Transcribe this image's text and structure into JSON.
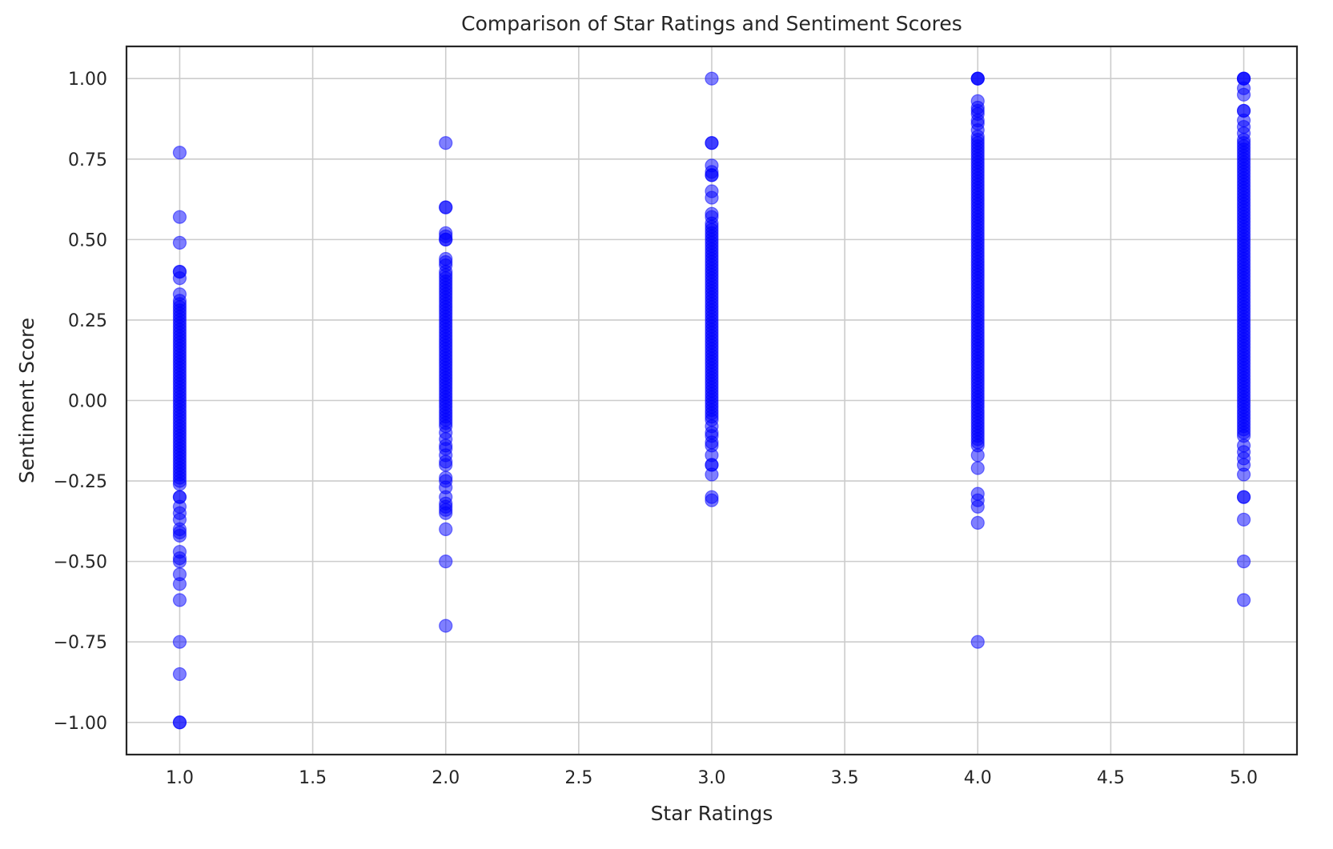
{
  "chart_data": {
    "type": "scatter",
    "title": "Comparison of Star Ratings and Sentiment Scores",
    "xlabel": "Star Ratings",
    "ylabel": "Sentiment Score",
    "xlim": [
      0.8,
      5.2
    ],
    "ylim": [
      -1.1,
      1.1
    ],
    "x_ticks": [
      1.0,
      1.5,
      2.0,
      2.5,
      3.0,
      3.5,
      4.0,
      4.5,
      5.0
    ],
    "x_tick_labels": [
      "1.0",
      "1.5",
      "2.0",
      "2.5",
      "3.0",
      "3.5",
      "4.0",
      "4.5",
      "5.0"
    ],
    "y_ticks": [
      1.0,
      0.75,
      0.5,
      0.25,
      0.0,
      -0.25,
      -0.5,
      -0.75,
      -1.0
    ],
    "y_tick_labels": [
      "1.00",
      "0.75",
      "0.50",
      "0.25",
      "0.00",
      "−0.25",
      "−0.50",
      "−0.75",
      "−1.00"
    ],
    "grid": true,
    "marker_color": "#0000ff",
    "marker_alpha": 0.5,
    "series": [
      {
        "x": 1,
        "y": [
          0.77,
          0.57,
          0.49,
          0.4,
          0.4,
          0.38,
          0.33,
          0.31,
          0.3,
          0.29,
          0.28,
          0.27,
          0.26,
          0.25,
          0.24,
          0.23,
          0.22,
          0.21,
          0.2,
          0.19,
          0.18,
          0.17,
          0.16,
          0.15,
          0.14,
          0.13,
          0.12,
          0.11,
          0.1,
          0.09,
          0.08,
          0.07,
          0.06,
          0.05,
          0.04,
          0.03,
          0.02,
          0.01,
          0.0,
          -0.01,
          -0.02,
          -0.03,
          -0.04,
          -0.05,
          -0.06,
          -0.07,
          -0.08,
          -0.09,
          -0.1,
          -0.11,
          -0.12,
          -0.13,
          -0.14,
          -0.15,
          -0.16,
          -0.17,
          -0.18,
          -0.19,
          -0.2,
          -0.21,
          -0.22,
          -0.23,
          -0.24,
          -0.25,
          -0.26,
          -0.3,
          -0.3,
          -0.33,
          -0.35,
          -0.37,
          -0.4,
          -0.41,
          -0.42,
          -0.47,
          -0.49,
          -0.5,
          -0.54,
          -0.57,
          -0.62,
          -0.75,
          -0.85,
          -1.0,
          -1.0
        ]
      },
      {
        "x": 2,
        "y": [
          0.8,
          0.6,
          0.6,
          0.52,
          0.51,
          0.5,
          0.5,
          0.44,
          0.43,
          0.42,
          0.4,
          0.39,
          0.38,
          0.37,
          0.36,
          0.35,
          0.34,
          0.33,
          0.32,
          0.31,
          0.3,
          0.29,
          0.28,
          0.27,
          0.26,
          0.25,
          0.24,
          0.23,
          0.22,
          0.21,
          0.2,
          0.19,
          0.18,
          0.17,
          0.16,
          0.15,
          0.14,
          0.13,
          0.12,
          0.11,
          0.1,
          0.09,
          0.08,
          0.07,
          0.06,
          0.05,
          0.04,
          0.03,
          0.02,
          0.01,
          0.0,
          -0.01,
          -0.02,
          -0.03,
          -0.04,
          -0.05,
          -0.06,
          -0.07,
          -0.08,
          -0.1,
          -0.12,
          -0.14,
          -0.15,
          -0.17,
          -0.19,
          -0.2,
          -0.24,
          -0.25,
          -0.27,
          -0.3,
          -0.32,
          -0.33,
          -0.34,
          -0.35,
          -0.4,
          -0.5,
          -0.7
        ]
      },
      {
        "x": 3,
        "y": [
          1.0,
          0.8,
          0.8,
          0.73,
          0.71,
          0.7,
          0.7,
          0.65,
          0.63,
          0.58,
          0.57,
          0.55,
          0.54,
          0.53,
          0.52,
          0.51,
          0.5,
          0.49,
          0.48,
          0.47,
          0.46,
          0.45,
          0.44,
          0.43,
          0.42,
          0.41,
          0.4,
          0.39,
          0.38,
          0.37,
          0.36,
          0.35,
          0.34,
          0.33,
          0.32,
          0.31,
          0.3,
          0.29,
          0.28,
          0.27,
          0.26,
          0.25,
          0.24,
          0.23,
          0.22,
          0.21,
          0.2,
          0.19,
          0.18,
          0.17,
          0.16,
          0.15,
          0.14,
          0.13,
          0.12,
          0.11,
          0.1,
          0.09,
          0.08,
          0.07,
          0.06,
          0.05,
          0.04,
          0.03,
          0.02,
          0.01,
          0.0,
          -0.01,
          -0.02,
          -0.03,
          -0.04,
          -0.05,
          -0.06,
          -0.08,
          -0.1,
          -0.11,
          -0.13,
          -0.14,
          -0.17,
          -0.2,
          -0.2,
          -0.23,
          -0.3,
          -0.31
        ]
      },
      {
        "x": 4,
        "y": [
          1.0,
          1.0,
          1.0,
          0.93,
          0.91,
          0.9,
          0.89,
          0.87,
          0.86,
          0.84,
          0.82,
          0.81,
          0.8,
          0.79,
          0.78,
          0.77,
          0.76,
          0.75,
          0.74,
          0.73,
          0.72,
          0.71,
          0.7,
          0.69,
          0.68,
          0.67,
          0.66,
          0.65,
          0.64,
          0.63,
          0.62,
          0.61,
          0.6,
          0.59,
          0.58,
          0.57,
          0.56,
          0.55,
          0.54,
          0.53,
          0.52,
          0.51,
          0.5,
          0.49,
          0.48,
          0.47,
          0.46,
          0.45,
          0.44,
          0.43,
          0.42,
          0.41,
          0.4,
          0.39,
          0.38,
          0.37,
          0.36,
          0.35,
          0.34,
          0.33,
          0.32,
          0.31,
          0.3,
          0.29,
          0.28,
          0.27,
          0.26,
          0.25,
          0.24,
          0.23,
          0.22,
          0.21,
          0.2,
          0.19,
          0.18,
          0.17,
          0.16,
          0.15,
          0.14,
          0.13,
          0.12,
          0.11,
          0.1,
          0.09,
          0.08,
          0.07,
          0.06,
          0.05,
          0.04,
          0.03,
          0.02,
          0.01,
          0.0,
          -0.01,
          -0.02,
          -0.03,
          -0.04,
          -0.05,
          -0.06,
          -0.07,
          -0.08,
          -0.09,
          -0.1,
          -0.11,
          -0.12,
          -0.13,
          -0.14,
          -0.17,
          -0.21,
          -0.29,
          -0.31,
          -0.33,
          -0.38,
          -0.75
        ]
      },
      {
        "x": 5,
        "y": [
          1.0,
          1.0,
          1.0,
          0.97,
          0.95,
          0.9,
          0.9,
          0.87,
          0.85,
          0.83,
          0.81,
          0.8,
          0.79,
          0.78,
          0.77,
          0.76,
          0.75,
          0.74,
          0.73,
          0.72,
          0.71,
          0.7,
          0.69,
          0.68,
          0.67,
          0.66,
          0.65,
          0.64,
          0.63,
          0.62,
          0.61,
          0.6,
          0.59,
          0.58,
          0.57,
          0.56,
          0.55,
          0.54,
          0.53,
          0.52,
          0.51,
          0.5,
          0.49,
          0.48,
          0.47,
          0.46,
          0.45,
          0.44,
          0.43,
          0.42,
          0.41,
          0.4,
          0.39,
          0.38,
          0.37,
          0.36,
          0.35,
          0.34,
          0.33,
          0.32,
          0.31,
          0.3,
          0.29,
          0.28,
          0.27,
          0.26,
          0.25,
          0.24,
          0.23,
          0.22,
          0.21,
          0.2,
          0.19,
          0.18,
          0.17,
          0.16,
          0.15,
          0.14,
          0.13,
          0.12,
          0.11,
          0.1,
          0.09,
          0.08,
          0.07,
          0.06,
          0.05,
          0.04,
          0.03,
          0.02,
          0.01,
          0.0,
          -0.01,
          -0.02,
          -0.03,
          -0.04,
          -0.05,
          -0.06,
          -0.07,
          -0.08,
          -0.09,
          -0.1,
          -0.11,
          -0.14,
          -0.16,
          -0.18,
          -0.2,
          -0.23,
          -0.3,
          -0.3,
          -0.37,
          -0.5,
          -0.62
        ]
      }
    ]
  }
}
